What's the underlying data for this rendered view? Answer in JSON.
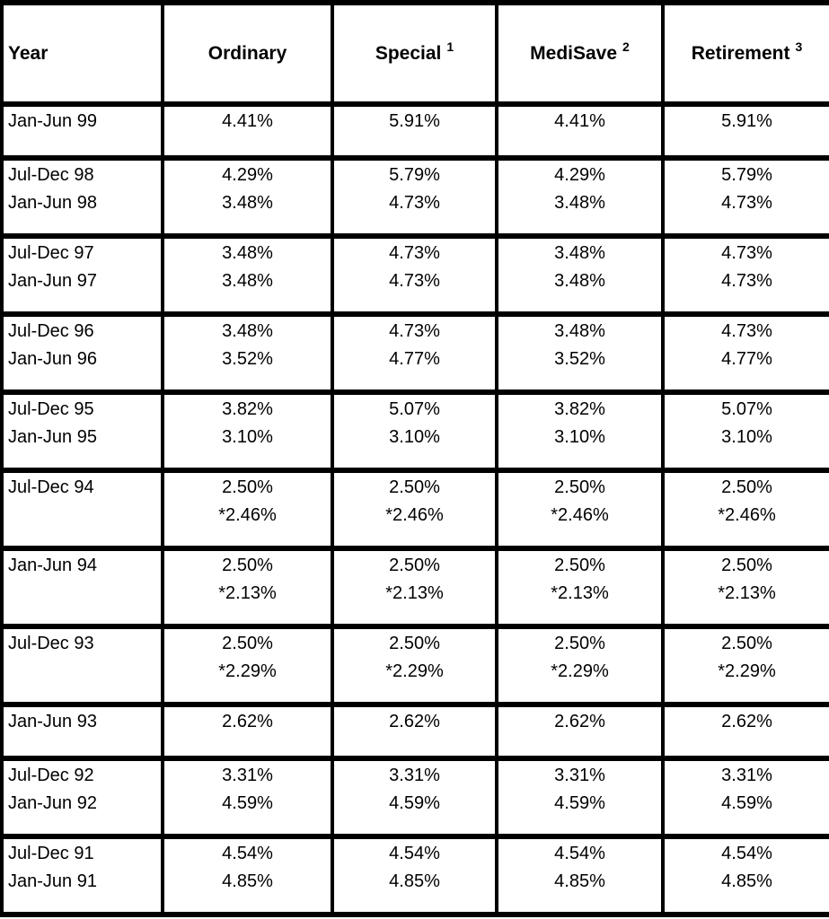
{
  "table": {
    "description": "CPF account interest rates by half-year period",
    "header": {
      "columns": [
        {
          "label": "Year",
          "sup": ""
        },
        {
          "label": "Ordinary",
          "sup": ""
        },
        {
          "label": "Special",
          "sup": "1"
        },
        {
          "label": "MediSave",
          "sup": "2"
        },
        {
          "label": "Retirement",
          "sup": "3"
        }
      ]
    },
    "rows": [
      {
        "cells": [
          [
            "Jan-Jun 99"
          ],
          [
            "4.41%"
          ],
          [
            "5.91%"
          ],
          [
            "4.41%"
          ],
          [
            "5.91%"
          ]
        ]
      },
      {
        "cells": [
          [
            "Jul-Dec 98",
            "Jan-Jun 98"
          ],
          [
            "4.29%",
            "3.48%"
          ],
          [
            "5.79%",
            "4.73%"
          ],
          [
            "4.29%",
            "3.48%"
          ],
          [
            "5.79%",
            "4.73%"
          ]
        ]
      },
      {
        "cells": [
          [
            "Jul-Dec 97",
            "Jan-Jun 97"
          ],
          [
            "3.48%",
            "3.48%"
          ],
          [
            "4.73%",
            "4.73%"
          ],
          [
            "3.48%",
            "3.48%"
          ],
          [
            "4.73%",
            "4.73%"
          ]
        ]
      },
      {
        "cells": [
          [
            "Jul-Dec 96",
            "Jan-Jun 96"
          ],
          [
            "3.48%",
            "3.52%"
          ],
          [
            "4.73%",
            "4.77%"
          ],
          [
            "3.48%",
            "3.52%"
          ],
          [
            "4.73%",
            "4.77%"
          ]
        ]
      },
      {
        "cells": [
          [
            "Jul-Dec 95",
            "Jan-Jun 95"
          ],
          [
            "3.82%",
            "3.10%"
          ],
          [
            "5.07%",
            "3.10%"
          ],
          [
            "3.82%",
            "3.10%"
          ],
          [
            "5.07%",
            "3.10%"
          ]
        ]
      },
      {
        "cells": [
          [
            "Jul-Dec 94"
          ],
          [
            "2.50%",
            "*2.46%"
          ],
          [
            "2.50%",
            "*2.46%"
          ],
          [
            "2.50%",
            "*2.46%"
          ],
          [
            "2.50%",
            "*2.46%"
          ]
        ]
      },
      {
        "cells": [
          [
            "Jan-Jun 94"
          ],
          [
            "2.50%",
            "*2.13%"
          ],
          [
            "2.50%",
            "*2.13%"
          ],
          [
            "2.50%",
            "*2.13%"
          ],
          [
            "2.50%",
            "*2.13%"
          ]
        ]
      },
      {
        "cells": [
          [
            "Jul-Dec 93"
          ],
          [
            "2.50%",
            "*2.29%"
          ],
          [
            "2.50%",
            "*2.29%"
          ],
          [
            "2.50%",
            "*2.29%"
          ],
          [
            "2.50%",
            "*2.29%"
          ]
        ]
      },
      {
        "cells": [
          [
            "Jan-Jun 93"
          ],
          [
            "2.62%"
          ],
          [
            "2.62%"
          ],
          [
            "2.62%"
          ],
          [
            "2.62%"
          ]
        ]
      },
      {
        "cells": [
          [
            "Jul-Dec 92",
            "Jan-Jun 92"
          ],
          [
            "3.31%",
            "4.59%"
          ],
          [
            "3.31%",
            "4.59%"
          ],
          [
            "3.31%",
            "4.59%"
          ],
          [
            "3.31%",
            "4.59%"
          ]
        ]
      },
      {
        "cells": [
          [
            "Jul-Dec 91",
            "Jan-Jun 91"
          ],
          [
            "4.54%",
            "4.85%"
          ],
          [
            "4.54%",
            "4.85%"
          ],
          [
            "4.54%",
            "4.85%"
          ],
          [
            "4.54%",
            "4.85%"
          ]
        ]
      }
    ],
    "colors": {
      "border": "#000000",
      "text": "#000000",
      "background": "#ffffff"
    }
  }
}
